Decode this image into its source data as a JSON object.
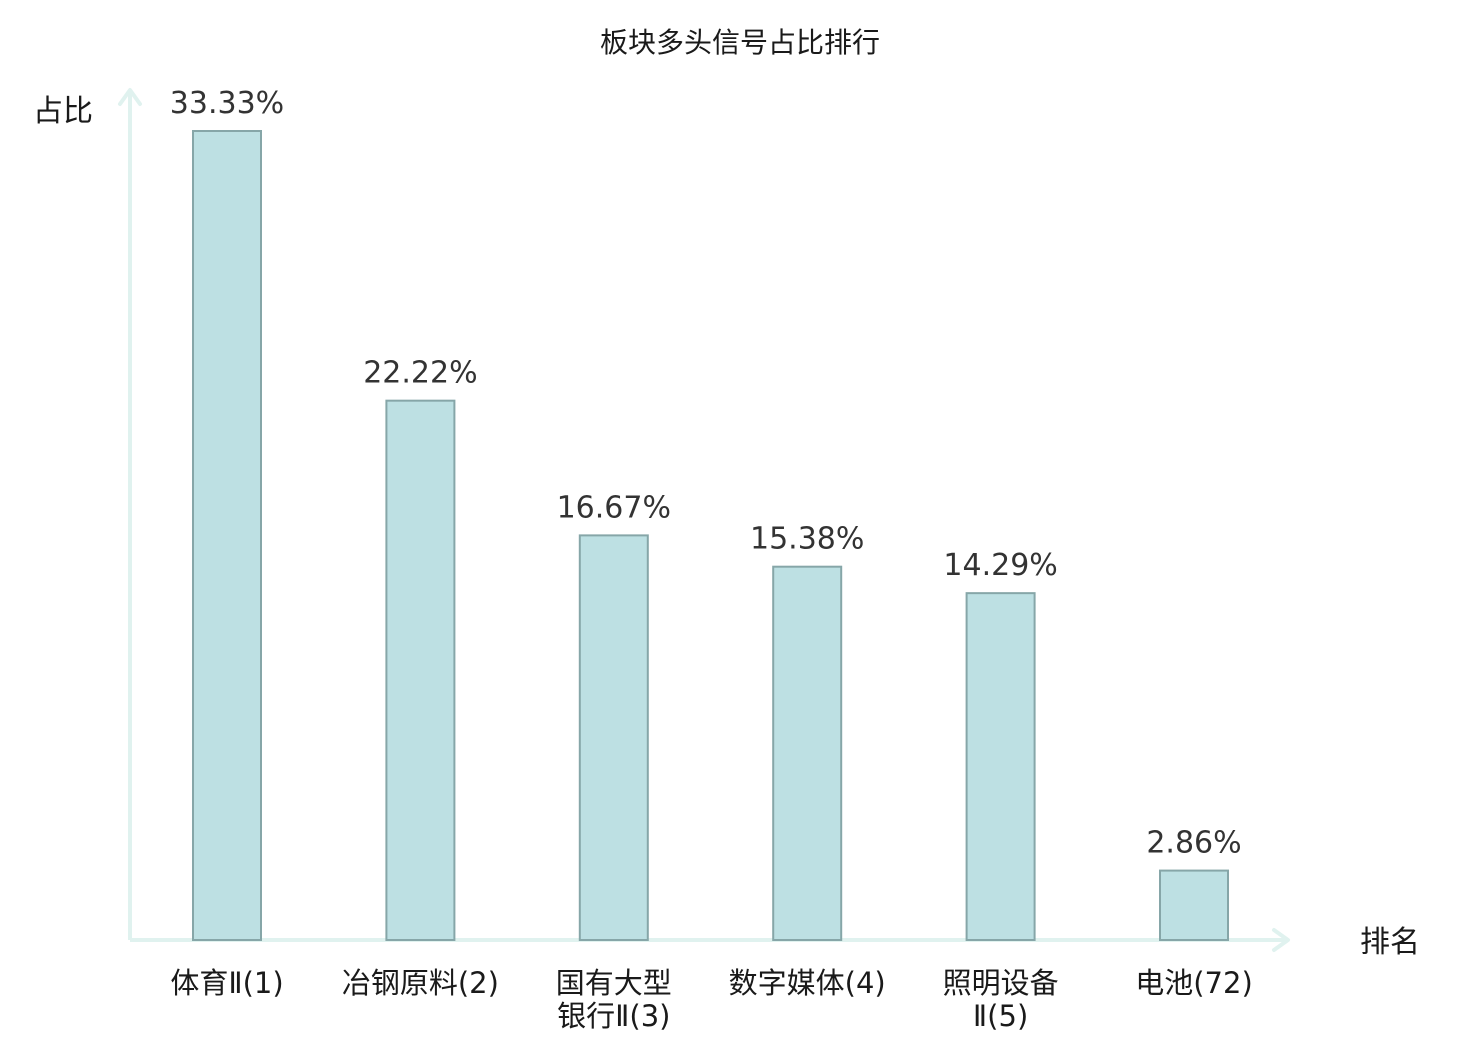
{
  "chart_data": {
    "type": "bar",
    "title": "板块多头信号占比排行",
    "ylabel": "占比",
    "xlabel": "排名",
    "categories": [
      [
        "体育Ⅱ(1)"
      ],
      [
        "冶钢原料(2)"
      ],
      [
        "国有大型",
        "银行Ⅱ(3)"
      ],
      [
        "数字媒体(4)"
      ],
      [
        "照明设备",
        "Ⅱ(5)"
      ],
      [
        "电池(72)"
      ]
    ],
    "values": [
      33.33,
      22.22,
      16.67,
      15.38,
      14.29,
      2.86
    ],
    "value_labels": [
      "33.33%",
      "22.22%",
      "16.67%",
      "15.38%",
      "14.29%",
      "2.86%"
    ],
    "highlight_index": 5,
    "ylim": [
      0,
      33.33
    ],
    "grid": false,
    "colors": {
      "bar_fill": "#bde0e3",
      "bar_stroke": "#86a6a8",
      "axis": "#e0f2ef",
      "highlight_text": "#e0191e",
      "text": "#1a1a1a"
    }
  }
}
